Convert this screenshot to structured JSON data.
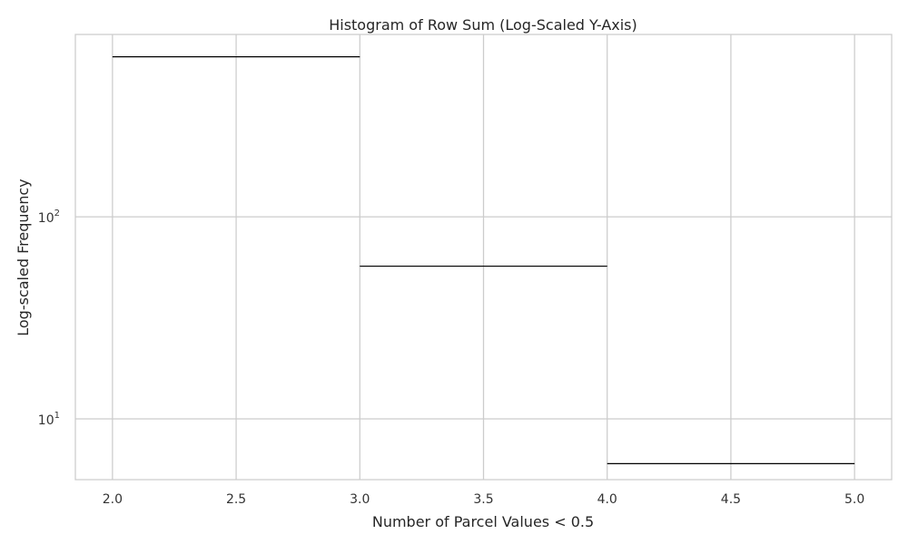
{
  "chart_data": {
    "type": "bar",
    "title": "Histogram of Row Sum (Log-Scaled Y-Axis)",
    "xlabel": "Number of Parcel Values < 0.5",
    "ylabel": "Log-scaled Frequency",
    "yscale": "log",
    "xlim": [
      1.85,
      5.15
    ],
    "ylim": [
      5,
      800
    ],
    "grid": true,
    "bin_edges": [
      2,
      3,
      4,
      5
    ],
    "values": [
      620,
      57,
      6
    ],
    "x_ticks": [
      2.0,
      2.5,
      3.0,
      3.5,
      4.0,
      4.5,
      5.0
    ],
    "x_tick_labels": [
      "2.0",
      "2.5",
      "3.0",
      "3.5",
      "4.0",
      "4.5",
      "5.0"
    ],
    "y_ticks": [
      10,
      100
    ],
    "y_tick_labels": [
      {
        "base": "10",
        "exp": "1"
      },
      {
        "base": "10",
        "exp": "2"
      }
    ],
    "colors": {
      "bar_edge": "#000000",
      "grid": "#cccccc",
      "spine": "#cccccc",
      "background": "#ffffff"
    }
  }
}
